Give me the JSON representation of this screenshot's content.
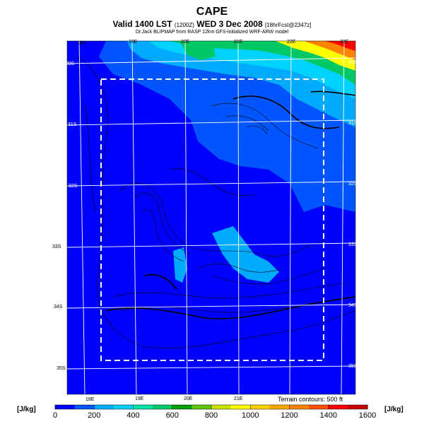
{
  "title": "CAPE",
  "subtitle": {
    "main": "Valid 1400 LST",
    "code": "(1200Z)",
    "date": "WED 3 Dec 2008",
    "run": "[18hrFcst@2347z]"
  },
  "credit": "Dr.Jack BLIPMAP from RASP 12km GFS-initialized WRF-ARW model",
  "terrain_note": "Terrain contours: 500 ft",
  "colorbar": {
    "unit_left": "[J/kg]",
    "unit_right": "[J/kg]",
    "labels": [
      "0",
      "200",
      "400",
      "600",
      "800",
      "1000",
      "1200",
      "1400",
      "1600"
    ],
    "colors": [
      "#0000ff",
      "#0055ff",
      "#00aaff",
      "#00d2ff",
      "#00e6aa",
      "#00c864",
      "#00a000",
      "#64c800",
      "#c8e600",
      "#ffff00",
      "#ffd200",
      "#ffaa00",
      "#ff8200",
      "#ff5000",
      "#ff0000",
      "#c80000"
    ]
  },
  "lon_labels_top": [
    "18E",
    "19E",
    "20E",
    "21E",
    "22E",
    "23E"
  ],
  "lon_labels_bottom": [
    "18E",
    "19E",
    "20E",
    "21E"
  ],
  "lat_labels_right": [
    "30S",
    "31S",
    "32S",
    "33S",
    "34S",
    "35S"
  ],
  "lat_labels_left": [
    "30S",
    "31S",
    "32S",
    "33S",
    "34S",
    "35S"
  ],
  "map_colors": {
    "background": "#0000ff",
    "light": "#0055ff",
    "cyan": "#00aaff",
    "teal": "#00d2ff",
    "green": "#00c864",
    "yellow": "#ffff00",
    "orange": "#ff8200",
    "red": "#ff0000"
  }
}
